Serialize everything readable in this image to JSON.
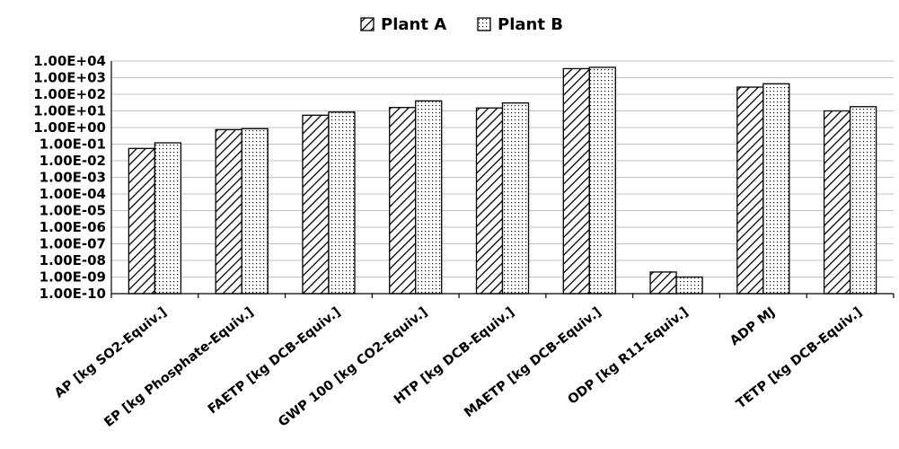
{
  "chart_data": {
    "type": "bar",
    "scale": "log",
    "categories": [
      "AP [kg SO2-Equiv.]",
      "EP [kg Phosphate-Equiv.]",
      "FAETP [kg DCB-Equiv.]",
      "GWP 100 [kg CO2-Equiv.]",
      "HTP [kg DCB-Equiv.]",
      "MAETP [kg DCB-Equiv.]",
      "ODP [kg R11-Equiv.]",
      "ADP MJ",
      "TETP [kg DCB-Equiv.]"
    ],
    "series": [
      {
        "name": "Plant A",
        "pattern": "diagonal-hatch",
        "values": [
          0.055,
          0.75,
          5.5,
          16,
          15,
          3500,
          2e-09,
          270,
          10
        ]
      },
      {
        "name": "Plant B",
        "pattern": "dotted",
        "values": [
          0.12,
          0.85,
          8.5,
          40,
          30,
          4200,
          1e-09,
          430,
          18
        ]
      }
    ],
    "yticks": [
      "1.00E-10",
      "1.00E-09",
      "1.00E-08",
      "1.00E-07",
      "1.00E-06",
      "1.00E-05",
      "1.00E-04",
      "1.00E-03",
      "1.00E-02",
      "1.00E-01",
      "1.00E+00",
      "1.00E+01",
      "1.00E+02",
      "1.00E+03",
      "1.00E+04"
    ],
    "ylim": [
      1e-10,
      10000.0
    ],
    "grid": true,
    "legend_position": "top-center",
    "title": "",
    "xlabel": "",
    "ylabel": ""
  }
}
